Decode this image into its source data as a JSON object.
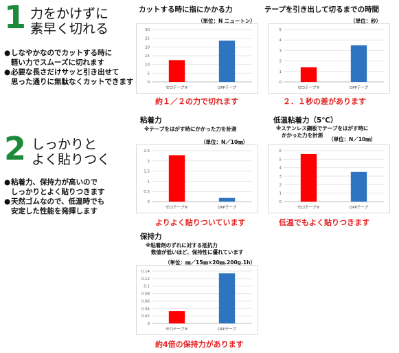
{
  "section1": {
    "number": "1",
    "heading_line1": "力をかけずに",
    "heading_line2": "素早く切れる",
    "bullets": [
      {
        "line1": "しなやかなのでカットする時に",
        "line2": "軽い力でスムーズに切れます"
      },
      {
        "line1": "必要な長さだけサッと引き出せて",
        "line2": "思った通りに無駄なくカットできます"
      }
    ]
  },
  "section2": {
    "number": "2",
    "heading_line1": "しっかりと",
    "heading_line2": "よく貼りつく",
    "bullets": [
      {
        "line1": "粘着力、保持力が高いので",
        "line2": "しっかりとよく貼りつきます"
      },
      {
        "line1": "天然ゴムなので、低温時でも",
        "line2": "安定した性能を発揮します"
      }
    ]
  },
  "charts": {
    "cut_force": {
      "title": "カットする時に指にかかる力",
      "unit": "（単位：N ニュートン）",
      "caption": "約１／２の力で切れます"
    },
    "cut_time": {
      "title": "テープを引き出して切るまでの時間",
      "unit": "（単位：秒）",
      "caption": "２．１秒の差があります"
    },
    "adhesion": {
      "title": "粘着力",
      "note": "※テープをはがす時にかかった力を計測",
      "unit": "（単位：N／10㎜）",
      "caption": "よりよく貼りついています"
    },
    "low_temp": {
      "title": "低温粘着力（5℃）",
      "note1": "※ステンレス鋼板でテープをはがす時に",
      "note2": "かかった力を計測",
      "unit": "（単位：N／10㎜）",
      "caption": "低温でもよく貼りつきます"
    },
    "holding": {
      "title": "保持力",
      "note1": "※粘着剤のずれに対する抵抗力",
      "note2": "数値が低いほど、保持性に優れています",
      "unit": "（単位：㎜／15㎜×20㎜.200g.1h）",
      "caption": "約4倍の保持力があります"
    }
  },
  "colors": {
    "red_bar": "#ff0000",
    "blue_bar": "#2e74c0",
    "green_number": "#1d8a3a",
    "caption_red": "#e52020"
  },
  "chart_data": [
    {
      "id": "cut_force",
      "type": "bar",
      "categories": [
        "セロテープ®",
        "OPPテープ"
      ],
      "values": [
        12.5,
        23.7
      ],
      "ylim": [
        0,
        30
      ],
      "yticks": [
        "0",
        "5",
        "10",
        "15",
        "20",
        "25",
        "30"
      ]
    },
    {
      "id": "cut_time",
      "type": "bar",
      "categories": [
        "セロテープ®",
        "OPPテープ"
      ],
      "values": [
        1.4,
        3.5
      ],
      "ylim": [
        0,
        5
      ],
      "yticks": [
        "0",
        "1",
        "2",
        "3",
        "4",
        "5"
      ]
    },
    {
      "id": "adhesion",
      "type": "bar",
      "categories": [
        "セロテープ®",
        "OPPテープ"
      ],
      "values": [
        2.28,
        0.18
      ],
      "ylim": [
        0,
        2.5
      ],
      "yticks": [
        "0",
        "0.5",
        "1",
        "1.5",
        "2",
        "2.5"
      ]
    },
    {
      "id": "low_temp",
      "type": "bar",
      "categories": [
        "セロテープ®",
        "OPPテープ"
      ],
      "values": [
        5.6,
        3.5
      ],
      "ylim": [
        0,
        6
      ],
      "yticks": [
        "0",
        "1",
        "2",
        "3",
        "4",
        "5",
        "6"
      ]
    },
    {
      "id": "holding",
      "type": "bar",
      "categories": [
        "セロテープ®",
        "OPPテープ"
      ],
      "values": [
        0.033,
        0.134
      ],
      "ylim": [
        0,
        0.14
      ],
      "yticks": [
        "0",
        "0.02",
        "0.04",
        "0.06",
        "0.08",
        "0.1",
        "0.12",
        "0.14"
      ]
    }
  ]
}
